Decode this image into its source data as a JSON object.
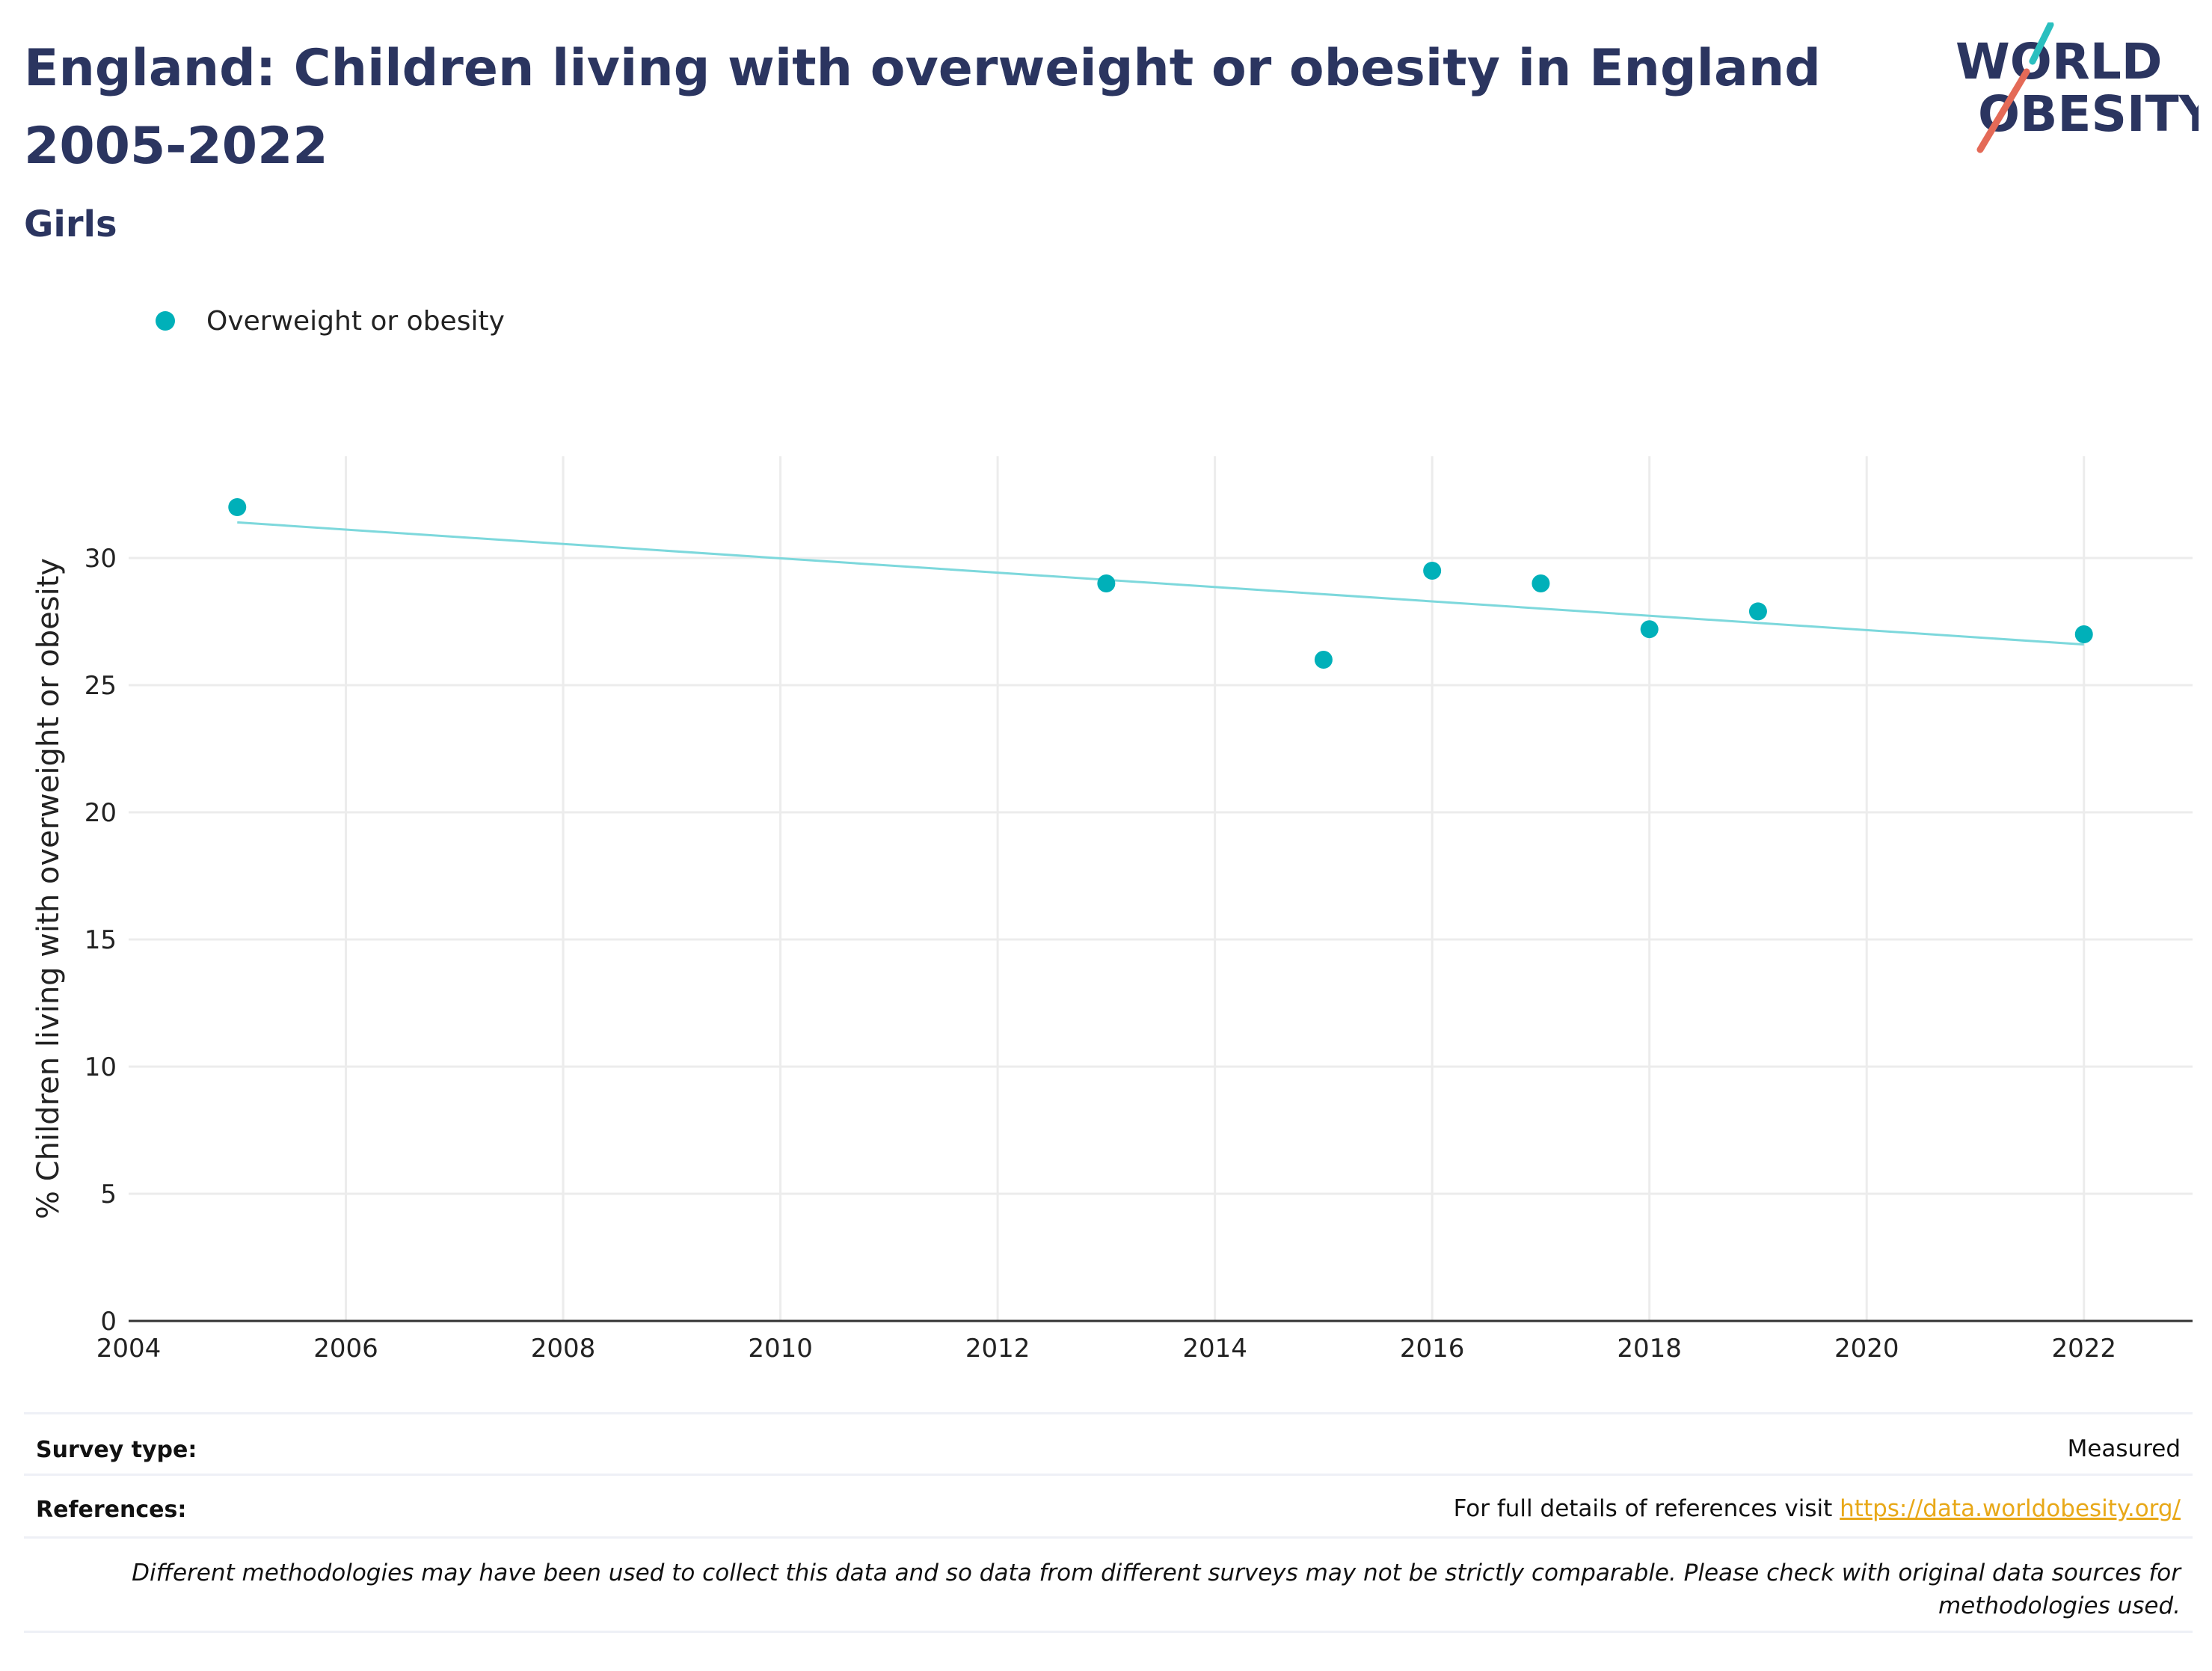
{
  "header": {
    "title": "England: Children living with overweight or obesity in England 2005-2022",
    "subtitle": "Girls"
  },
  "logo": {
    "line1": "WORLD",
    "line2": "OBESITY",
    "accent_colors": [
      "#2bbfbf",
      "#e46a57"
    ]
  },
  "colors": {
    "title": "#2b3560",
    "series": "#00b0b9",
    "trendline": "#7dd8dc",
    "grid": "#ececec",
    "link": "#e8a818"
  },
  "chart_data": {
    "type": "scatter",
    "ylabel": "% Children living with overweight or obesity",
    "xlabel": "",
    "xlim": [
      2004,
      2023
    ],
    "ylim": [
      0,
      34
    ],
    "x_ticks": [
      2004,
      2006,
      2008,
      2010,
      2012,
      2014,
      2016,
      2018,
      2020,
      2022
    ],
    "y_ticks": [
      0,
      5,
      10,
      15,
      20,
      25,
      30
    ],
    "grid": true,
    "legend_position": "top-left",
    "series": [
      {
        "name": "Overweight or obesity",
        "x": [
          2005,
          2013,
          2015,
          2016,
          2017,
          2018,
          2019,
          2022
        ],
        "y": [
          32.0,
          29.0,
          26.0,
          29.5,
          29.0,
          27.2,
          27.9,
          27.0
        ]
      }
    ],
    "trendline": {
      "x": [
        2005,
        2022
      ],
      "y": [
        31.4,
        26.6
      ]
    }
  },
  "footer": {
    "survey_type_label": "Survey type:",
    "survey_type_value": "Measured",
    "references_label": "References:",
    "references_text": "For full details of references visit ",
    "references_link": "https://data.worldobesity.org/",
    "disclaimer": "Different methodologies may have been used to collect this data and so data from different surveys may not be strictly comparable. Please check with original data sources for methodologies used."
  }
}
